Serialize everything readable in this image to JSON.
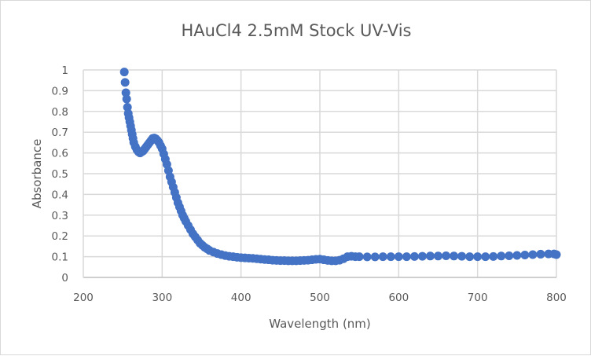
{
  "chart_data": {
    "type": "scatter",
    "title": "HAuCl4 2.5mM Stock UV-Vis",
    "xlabel": "Wavelength (nm)",
    "ylabel": "Absorbance",
    "xlim": [
      200,
      800
    ],
    "ylim": [
      0,
      1
    ],
    "xticks": [
      "200",
      "300",
      "400",
      "500",
      "600",
      "700",
      "800"
    ],
    "yticks": [
      "0",
      "0.1",
      "0.2",
      "0.3",
      "0.4",
      "0.5",
      "0.6",
      "0.7",
      "0.8",
      "0.9",
      "1"
    ],
    "grid": true,
    "legend": "none",
    "marker_color": "#4472c4",
    "grid_color": "#d9d9d9",
    "points": [
      [
        252,
        0.99
      ],
      [
        253,
        0.94
      ],
      [
        254,
        0.89
      ],
      [
        255,
        0.86
      ],
      [
        256,
        0.82
      ],
      [
        257,
        0.79
      ],
      [
        258,
        0.77
      ],
      [
        259,
        0.75
      ],
      [
        260,
        0.73
      ],
      [
        261,
        0.71
      ],
      [
        262,
        0.69
      ],
      [
        263,
        0.67
      ],
      [
        264,
        0.65
      ],
      [
        266,
        0.63
      ],
      [
        268,
        0.615
      ],
      [
        270,
        0.605
      ],
      [
        272,
        0.6
      ],
      [
        274,
        0.605
      ],
      [
        276,
        0.61
      ],
      [
        278,
        0.62
      ],
      [
        280,
        0.63
      ],
      [
        282,
        0.64
      ],
      [
        284,
        0.65
      ],
      [
        286,
        0.66
      ],
      [
        288,
        0.67
      ],
      [
        290,
        0.672
      ],
      [
        292,
        0.668
      ],
      [
        294,
        0.66
      ],
      [
        296,
        0.65
      ],
      [
        298,
        0.635
      ],
      [
        300,
        0.62
      ],
      [
        302,
        0.595
      ],
      [
        304,
        0.57
      ],
      [
        306,
        0.545
      ],
      [
        308,
        0.515
      ],
      [
        310,
        0.485
      ],
      [
        312,
        0.46
      ],
      [
        314,
        0.435
      ],
      [
        316,
        0.41
      ],
      [
        318,
        0.385
      ],
      [
        320,
        0.36
      ],
      [
        322,
        0.34
      ],
      [
        324,
        0.32
      ],
      [
        326,
        0.3
      ],
      [
        328,
        0.285
      ],
      [
        330,
        0.27
      ],
      [
        333,
        0.25
      ],
      [
        336,
        0.23
      ],
      [
        339,
        0.21
      ],
      [
        342,
        0.195
      ],
      [
        345,
        0.18
      ],
      [
        348,
        0.165
      ],
      [
        351,
        0.155
      ],
      [
        354,
        0.145
      ],
      [
        357,
        0.138
      ],
      [
        360,
        0.13
      ],
      [
        365,
        0.122
      ],
      [
        370,
        0.115
      ],
      [
        375,
        0.11
      ],
      [
        380,
        0.105
      ],
      [
        385,
        0.102
      ],
      [
        390,
        0.1
      ],
      [
        395,
        0.097
      ],
      [
        400,
        0.095
      ],
      [
        405,
        0.094
      ],
      [
        410,
        0.093
      ],
      [
        415,
        0.092
      ],
      [
        420,
        0.09
      ],
      [
        425,
        0.088
      ],
      [
        430,
        0.086
      ],
      [
        435,
        0.085
      ],
      [
        440,
        0.083
      ],
      [
        445,
        0.082
      ],
      [
        450,
        0.081
      ],
      [
        455,
        0.081
      ],
      [
        460,
        0.08
      ],
      [
        465,
        0.08
      ],
      [
        470,
        0.08
      ],
      [
        475,
        0.081
      ],
      [
        480,
        0.082
      ],
      [
        485,
        0.083
      ],
      [
        490,
        0.085
      ],
      [
        495,
        0.087
      ],
      [
        500,
        0.088
      ],
      [
        505,
        0.085
      ],
      [
        510,
        0.082
      ],
      [
        515,
        0.08
      ],
      [
        520,
        0.08
      ],
      [
        525,
        0.083
      ],
      [
        530,
        0.09
      ],
      [
        535,
        0.1
      ],
      [
        540,
        0.102
      ],
      [
        545,
        0.1
      ],
      [
        550,
        0.1
      ],
      [
        560,
        0.099
      ],
      [
        570,
        0.099
      ],
      [
        580,
        0.1
      ],
      [
        590,
        0.1
      ],
      [
        600,
        0.1
      ],
      [
        610,
        0.1
      ],
      [
        620,
        0.101
      ],
      [
        630,
        0.102
      ],
      [
        640,
        0.103
      ],
      [
        650,
        0.103
      ],
      [
        660,
        0.104
      ],
      [
        670,
        0.103
      ],
      [
        680,
        0.102
      ],
      [
        690,
        0.1
      ],
      [
        700,
        0.1
      ],
      [
        710,
        0.1
      ],
      [
        720,
        0.101
      ],
      [
        730,
        0.103
      ],
      [
        740,
        0.104
      ],
      [
        750,
        0.106
      ],
      [
        760,
        0.108
      ],
      [
        770,
        0.11
      ],
      [
        780,
        0.112
      ],
      [
        790,
        0.113
      ],
      [
        797,
        0.113
      ],
      [
        800,
        0.11
      ]
    ]
  }
}
